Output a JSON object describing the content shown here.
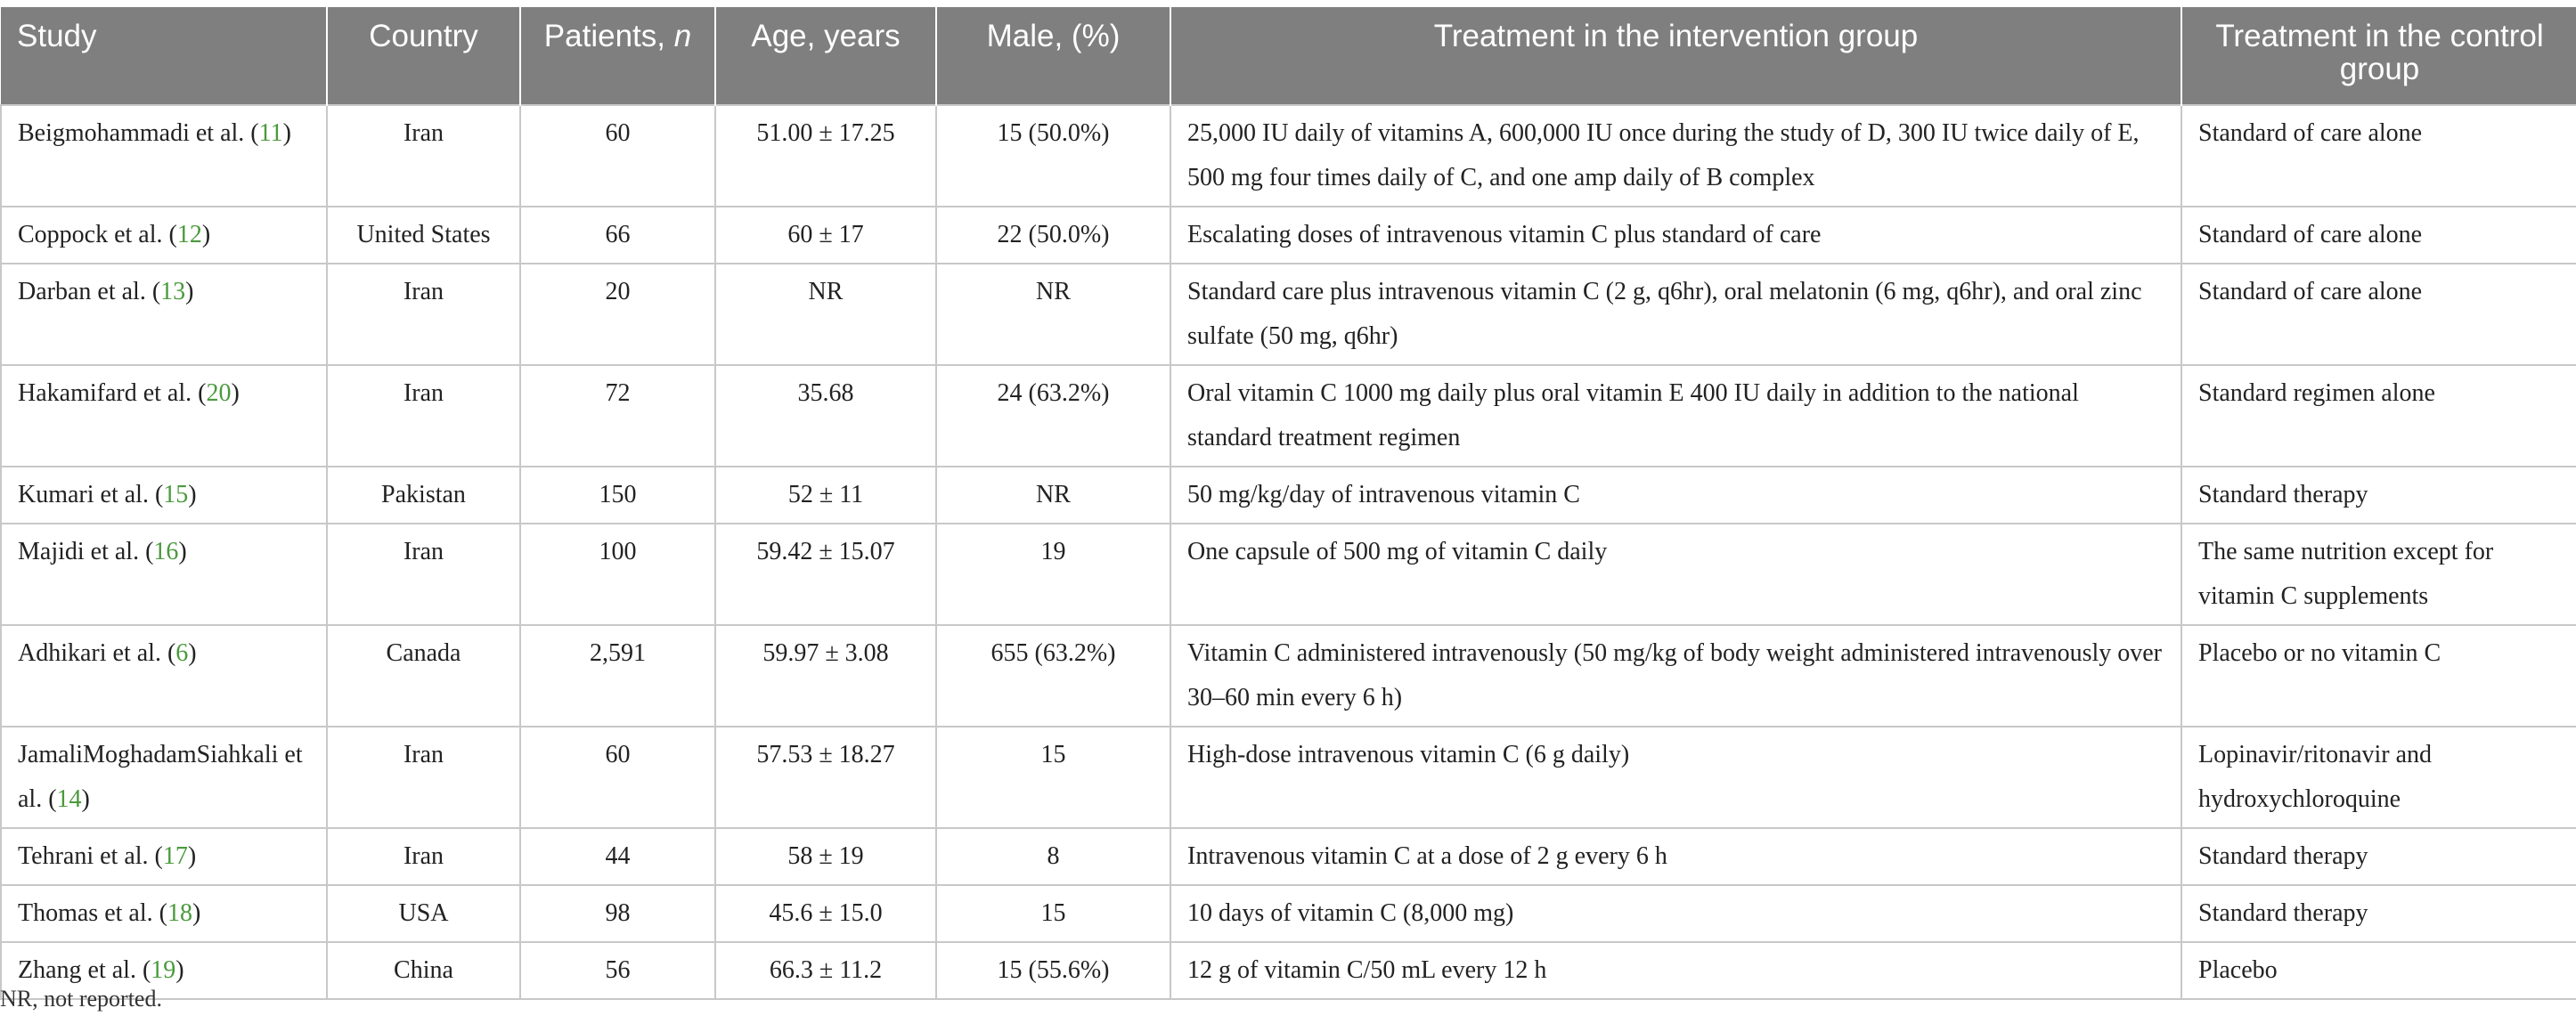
{
  "table": {
    "headers": [
      {
        "text": "Study",
        "italic_suffix": ""
      },
      {
        "text": "Country",
        "italic_suffix": ""
      },
      {
        "text": "Patients, ",
        "italic_suffix": "n"
      },
      {
        "text": "Age, years",
        "italic_suffix": ""
      },
      {
        "text": "Male, (%)",
        "italic_suffix": ""
      },
      {
        "text": "Treatment in the intervention group",
        "italic_suffix": ""
      },
      {
        "text": "Treatment in the control group",
        "italic_suffix": ""
      }
    ],
    "rows": [
      {
        "study": "Beigmohammadi et al. (",
        "ref": "11",
        "country": "Iran",
        "patients": "60",
        "age": "51.00 ± 17.25",
        "male": "15 (50.0%)",
        "intervention": "25,000 IU daily of vitamins A, 600,000 IU once during the study of D, 300 IU twice daily of E, 500 mg four times daily of C, and one amp daily of B complex",
        "control": "Standard of care alone"
      },
      {
        "study": "Coppock et al. (",
        "ref": "12",
        "country": "United States",
        "patients": "66",
        "age": "60 ± 17",
        "male": "22 (50.0%)",
        "intervention": "Escalating doses of intravenous vitamin C plus standard of care",
        "control": "Standard of care alone"
      },
      {
        "study": "Darban et al. (",
        "ref": "13",
        "country": "Iran",
        "patients": "20",
        "age": "NR",
        "male": "NR",
        "intervention": "Standard care plus intravenous vitamin C (2 g, q6hr), oral melatonin (6 mg, q6hr), and oral zinc sulfate (50 mg, q6hr)",
        "control": "Standard of care alone"
      },
      {
        "study": "Hakamifard et al. (",
        "ref": "20",
        "country": "Iran",
        "patients": "72",
        "age": "35.68",
        "male": "24 (63.2%)",
        "intervention": "Oral vitamin C 1000 mg daily plus oral vitamin E 400 IU daily in addition to the national standard treatment regimen",
        "control": "Standard regimen alone"
      },
      {
        "study": "Kumari et al. (",
        "ref": "15",
        "country": "Pakistan",
        "patients": "150",
        "age": "52 ± 11",
        "male": "NR",
        "intervention": "50 mg/kg/day of intravenous vitamin C",
        "control": "Standard therapy"
      },
      {
        "study": "Majidi et al. (",
        "ref": "16",
        "country": "Iran",
        "patients": "100",
        "age": "59.42 ± 15.07",
        "male": "19",
        "intervention": "One capsule of 500 mg of vitamin C daily",
        "control": "The same nutrition except for vitamin C supplements"
      },
      {
        "study": "Adhikari et al. (",
        "ref": "6",
        "country": "Canada",
        "patients": "2,591",
        "age": "59.97 ± 3.08",
        "male": "655 (63.2%)",
        "intervention": "Vitamin C administered intravenously (50 mg/kg of body weight administered intravenously over 30–60 min every 6 h)",
        "control": "Placebo or no vitamin C"
      },
      {
        "study": "JamaliMoghadamSiahkali et al. (",
        "ref": "14",
        "country": "Iran",
        "patients": "60",
        "age": "57.53 ± 18.27",
        "male": "15",
        "intervention": "High-dose intravenous vitamin C (6 g daily)",
        "control": "Lopinavir/ritonavir and hydroxychloroquine"
      },
      {
        "study": "Tehrani et al. (",
        "ref": "17",
        "country": "Iran",
        "patients": "44",
        "age": "58 ± 19",
        "male": "8",
        "intervention": "Intravenous vitamin C at a dose of 2 g every 6 h",
        "control": "Standard therapy"
      },
      {
        "study": "Thomas et al. (",
        "ref": "18",
        "country": "USA",
        "patients": "98",
        "age": "45.6 ± 15.0",
        "male": "15",
        "intervention": "10 days of vitamin C (8,000 mg)",
        "control": "Standard therapy"
      },
      {
        "study": "Zhang et al. (",
        "ref": "19",
        "country": "China",
        "patients": "56",
        "age": "66.3 ± 11.2",
        "male": "15 (55.6%)",
        "intervention": "12 g of vitamin C/50 mL every 12 h",
        "control": "Placebo"
      }
    ],
    "study_close": ")"
  },
  "footnote": "NR, not reported.",
  "colors": {
    "header_bg": "#7f7f7f",
    "header_text": "#ffffff",
    "ref_link": "#4a9a3c",
    "grid": "#c8c8c8"
  }
}
